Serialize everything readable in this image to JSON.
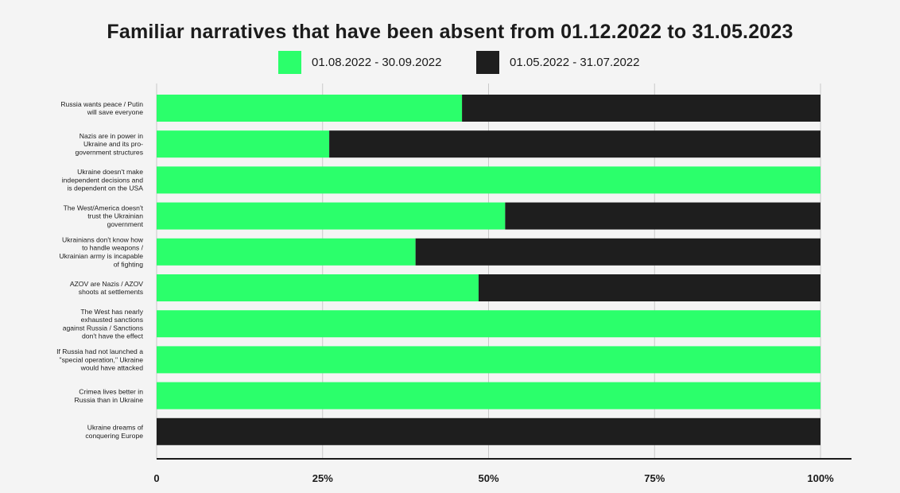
{
  "chart_data": {
    "type": "bar",
    "orientation": "horizontal",
    "stacked": true,
    "title": "Familiar narratives that have been absent from 01.12.2022 to 31.05.2023",
    "xlabel": "",
    "ylabel": "",
    "xlim": [
      0,
      100
    ],
    "x_ticks": [
      "0",
      "25%",
      "50%",
      "75%",
      "100%"
    ],
    "x_tick_values": [
      0,
      25,
      50,
      75,
      100
    ],
    "grid": true,
    "legend_position": "top-center",
    "categories": [
      [
        "Russia wants peace / Putin",
        "will save everyone"
      ],
      [
        "Nazis are in power in",
        "Ukraine and its pro-",
        "government structures"
      ],
      [
        "Ukraine doesn't make",
        "independent decisions and",
        "is dependent on the USA"
      ],
      [
        "The West/America doesn't",
        "trust the Ukrainian",
        "government"
      ],
      [
        "Ukrainians don't know how",
        "to handle weapons /",
        "Ukrainian army is incapable",
        "of fighting"
      ],
      [
        "AZOV are Nazis / AZOV",
        "shoots at settlements"
      ],
      [
        "The West has nearly",
        "exhausted sanctions",
        "against Russia / Sanctions",
        "don't have the effect"
      ],
      [
        "If Russia had not launched a",
        "\"special operation,\" Ukraine",
        "would have attacked"
      ],
      [
        "Crimea lives better in",
        "Russia than in Ukraine"
      ],
      [
        "Ukraine dreams of",
        "conquering Europe"
      ]
    ],
    "series": [
      {
        "name": "01.08.2022 - 30.09.2022",
        "color": "#2bff6b",
        "values": [
          46,
          26,
          100,
          52.5,
          39,
          48.5,
          100,
          100,
          100,
          0
        ]
      },
      {
        "name": "01.05.2022 - 31.07.2022",
        "color": "#1e1e1e",
        "values": [
          54,
          74,
          0,
          47.5,
          61,
          51.5,
          0,
          0,
          0,
          100
        ]
      }
    ]
  }
}
